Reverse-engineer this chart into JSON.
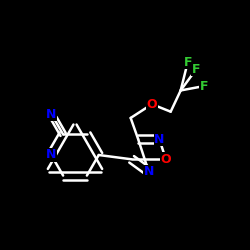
{
  "background": "#000000",
  "bond_color": "#ffffff",
  "atom_colors": {
    "N": "#0000ff",
    "O": "#ff0000",
    "F": "#33cc33",
    "C": "#ffffff"
  },
  "bond_width": 1.8,
  "fig_size": [
    2.5,
    2.5
  ],
  "dpi": 100,
  "font_size_atom": 9,
  "font_size_F": 9
}
